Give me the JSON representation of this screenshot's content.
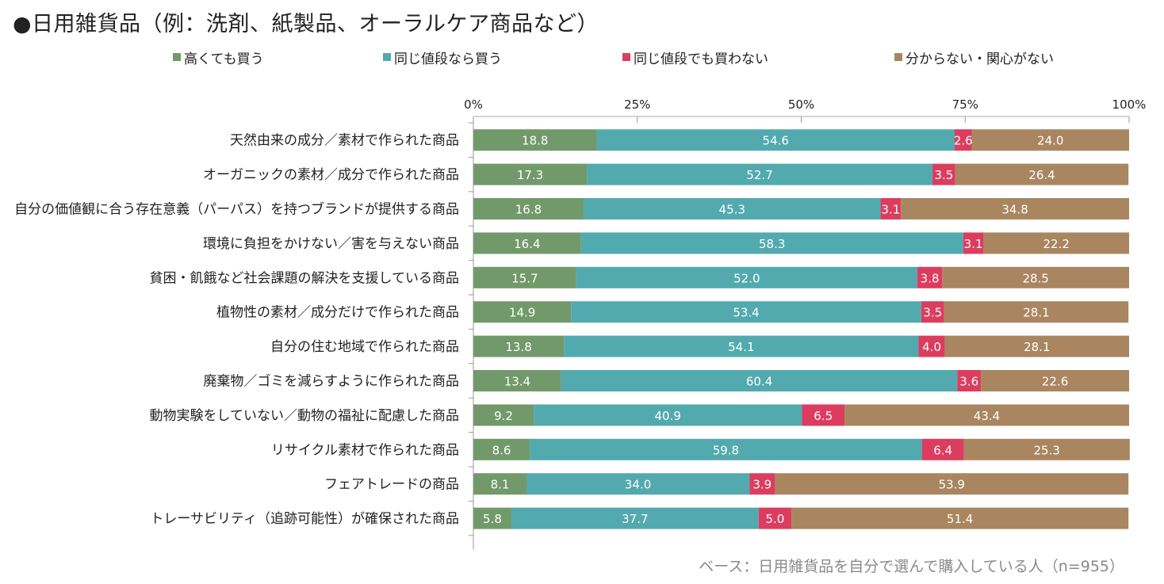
{
  "title": "●日用雑貨品（例：洗剤、紙製品、オーラルケア商品など）",
  "footnote": "ベース：日用雑貨品を自分で選んで購入している人（n=955）",
  "colors": {
    "buy_even_if_expensive": "#72996a",
    "buy_if_same_price": "#52aaae",
    "not_buy_same_price": "#dc3d5f",
    "dont_know": "#a98660"
  },
  "chart_data": {
    "type": "bar",
    "orientation": "horizontal",
    "stacked": true,
    "xlim": [
      0,
      100
    ],
    "x_ticks": [
      "0%",
      "25%",
      "50%",
      "75%",
      "100%"
    ],
    "legend_position": "top",
    "categories": [
      "天然由来の成分／素材で作られた商品",
      "オーガニックの素材／成分で作られた商品",
      "自分の価値観に合う存在意義（パーパス）を持つブランドが提供する商品",
      "環境に負担をかけない／害を与えない商品",
      "貧困・飢餓など社会課題の解決を支援している商品",
      "植物性の素材／成分だけで作られた商品",
      "自分の住む地域で作られた商品",
      "廃棄物／ゴミを減らすように作られた商品",
      "動物実験をしていない／動物の福祉に配慮した商品",
      "リサイクル素材で作られた商品",
      "フェアトレードの商品",
      "トレーサビリティ（追跡可能性）が確保された商品"
    ],
    "series": [
      {
        "name": "高くても買う",
        "color": "#72996a",
        "values": [
          18.8,
          17.3,
          16.8,
          16.4,
          15.7,
          14.9,
          13.8,
          13.4,
          9.2,
          8.6,
          8.1,
          5.8
        ]
      },
      {
        "name": "同じ値段なら買う",
        "color": "#52aaae",
        "values": [
          54.6,
          52.7,
          45.3,
          58.3,
          52.0,
          53.4,
          54.1,
          60.4,
          40.9,
          59.8,
          34.0,
          37.7
        ]
      },
      {
        "name": "同じ値段でも買わない",
        "color": "#dc3d5f",
        "values": [
          2.6,
          3.5,
          3.1,
          3.1,
          3.8,
          3.5,
          4.0,
          3.6,
          6.5,
          6.4,
          3.9,
          5.0
        ]
      },
      {
        "name": "分からない・関心がない",
        "color": "#a98660",
        "values": [
          24.0,
          26.4,
          34.8,
          22.2,
          28.5,
          28.1,
          28.1,
          22.6,
          43.4,
          25.3,
          53.9,
          51.4
        ]
      }
    ]
  }
}
